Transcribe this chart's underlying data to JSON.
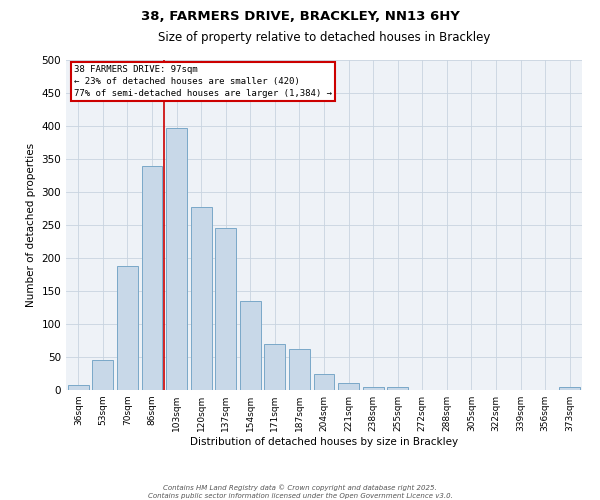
{
  "title1": "38, FARMERS DRIVE, BRACKLEY, NN13 6HY",
  "title2": "Size of property relative to detached houses in Brackley",
  "xlabel": "Distribution of detached houses by size in Brackley",
  "ylabel": "Number of detached properties",
  "categories": [
    "36sqm",
    "53sqm",
    "70sqm",
    "86sqm",
    "103sqm",
    "120sqm",
    "137sqm",
    "154sqm",
    "171sqm",
    "187sqm",
    "204sqm",
    "221sqm",
    "238sqm",
    "255sqm",
    "272sqm",
    "288sqm",
    "305sqm",
    "322sqm",
    "339sqm",
    "356sqm",
    "373sqm"
  ],
  "values": [
    8,
    46,
    188,
    340,
    397,
    278,
    245,
    135,
    70,
    62,
    25,
    11,
    5,
    5,
    0,
    0,
    0,
    0,
    0,
    0,
    4
  ],
  "bar_color": "#c8d8e8",
  "bar_edge_color": "#7aa8c8",
  "vline_color": "#cc0000",
  "vline_x_index": 3.5,
  "annotation_title": "38 FARMERS DRIVE: 97sqm",
  "annotation_line2": "← 23% of detached houses are smaller (420)",
  "annotation_line3": "77% of semi-detached houses are larger (1,384) →",
  "annotation_box_color": "#cc0000",
  "ylim": [
    0,
    500
  ],
  "yticks": [
    0,
    50,
    100,
    150,
    200,
    250,
    300,
    350,
    400,
    450,
    500
  ],
  "bg_color": "#eef2f7",
  "grid_color": "#c8d4e0",
  "title1_fontsize": 9.5,
  "title2_fontsize": 8.5,
  "xlabel_fontsize": 7.5,
  "ylabel_fontsize": 7.5,
  "xtick_fontsize": 6.5,
  "ytick_fontsize": 7.5,
  "ann_fontsize": 6.5,
  "footer": "Contains HM Land Registry data © Crown copyright and database right 2025.\nContains public sector information licensed under the Open Government Licence v3.0.",
  "footer_fontsize": 5.0
}
